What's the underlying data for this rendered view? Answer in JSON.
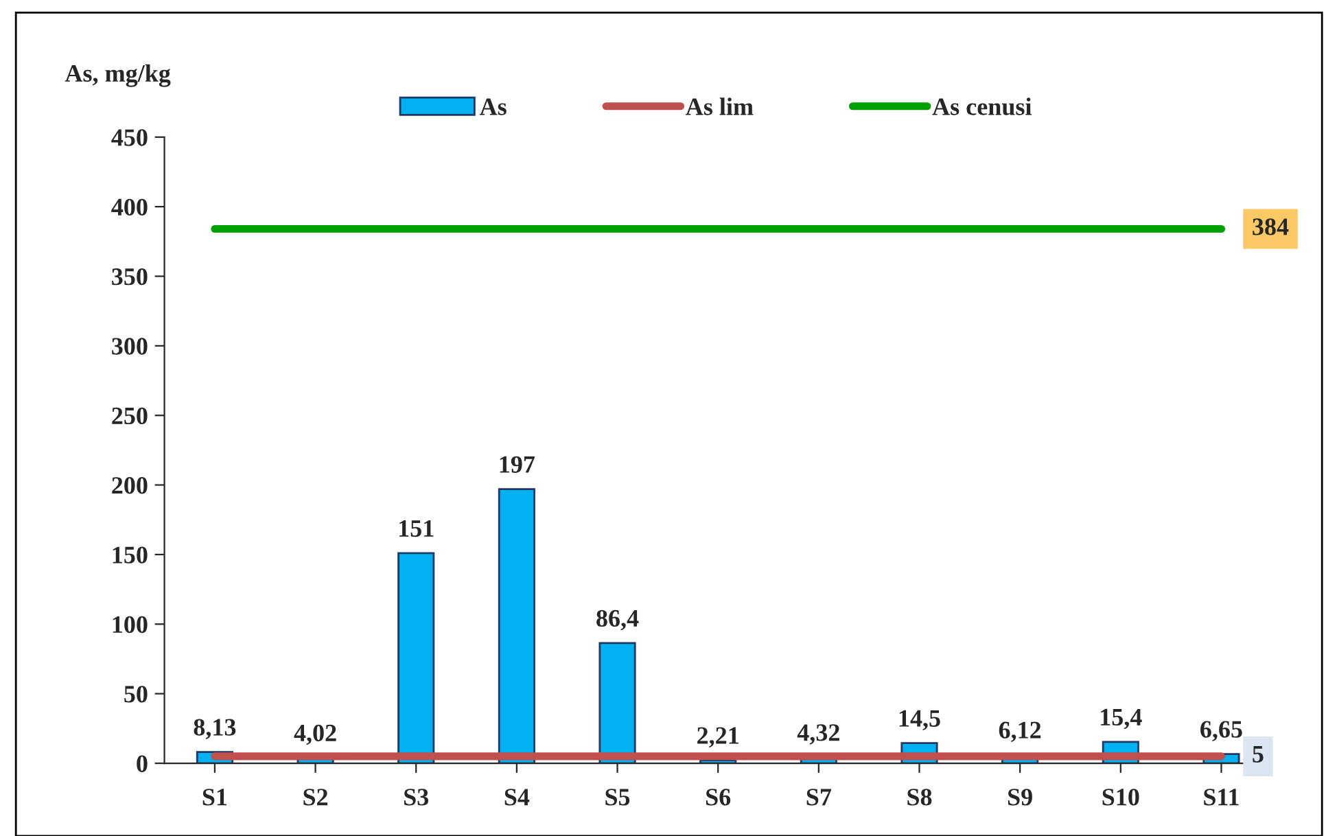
{
  "chart_data": {
    "type": "bar",
    "ylabel": "As, mg/kg",
    "categories": [
      "S1",
      "S2",
      "S3",
      "S4",
      "S5",
      "S6",
      "S7",
      "S8",
      "S9",
      "S10",
      "S11"
    ],
    "series": [
      {
        "name": "As",
        "color": "#00b0f0",
        "values": [
          8.13,
          4.02,
          151,
          197,
          86.4,
          2.21,
          4.32,
          14.5,
          6.12,
          15.4,
          6.65
        ],
        "value_labels": [
          "8,13",
          "4,02",
          "151",
          "197",
          "86,4",
          "2,21",
          "4,32",
          "14,5",
          "6,12",
          "15,4",
          "6,65"
        ]
      },
      {
        "name": "As lim",
        "type": "line",
        "color": "#c0504d",
        "values": [
          5,
          5,
          5,
          5,
          5,
          5,
          5,
          5,
          5,
          5,
          5
        ],
        "value_labels": [
          null,
          null,
          null,
          null,
          null,
          null,
          null,
          null,
          null,
          null,
          "5"
        ]
      },
      {
        "name": "As cenusi",
        "type": "line",
        "color": "#00a000",
        "values": [
          384,
          384,
          384,
          384,
          384,
          384,
          384,
          384,
          384,
          384,
          384
        ],
        "value_labels": [
          null,
          null,
          null,
          null,
          null,
          null,
          null,
          null,
          null,
          null,
          "384"
        ]
      }
    ],
    "ylim": [
      0,
      450
    ],
    "yticks": [
      0,
      50,
      100,
      150,
      200,
      250,
      300,
      350,
      400,
      450
    ],
    "legend": "top",
    "grid": false,
    "marker": "none",
    "line_style": "solid"
  }
}
